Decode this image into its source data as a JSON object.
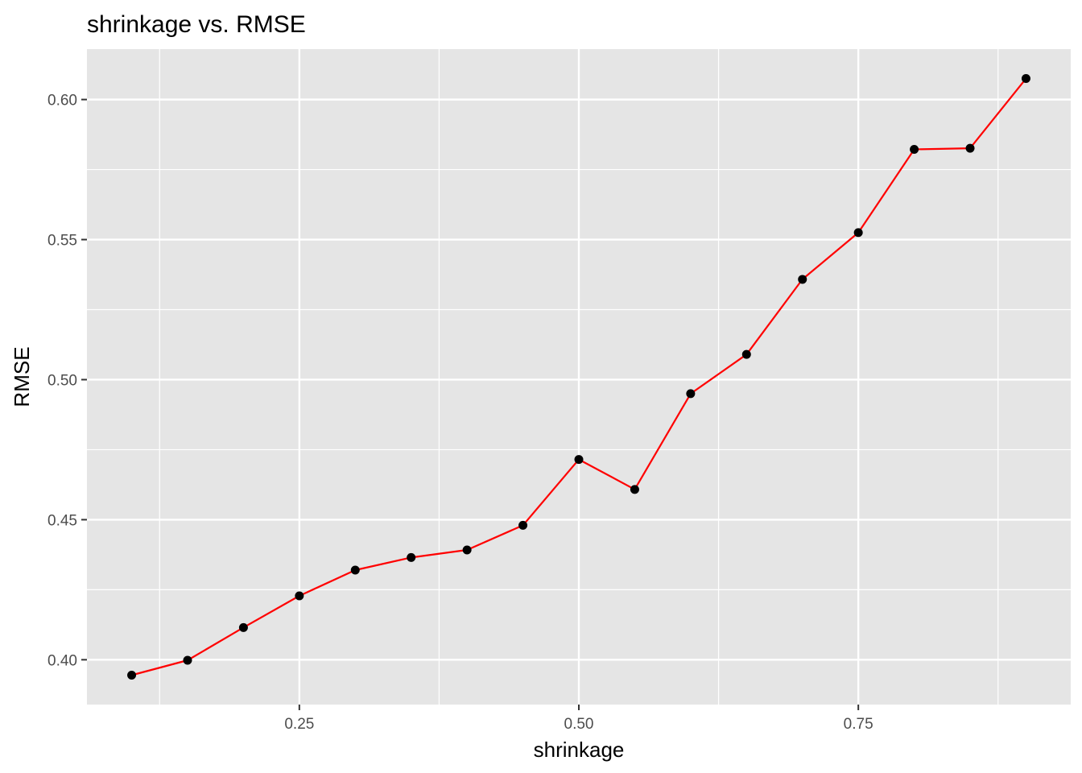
{
  "chart_data": {
    "type": "line",
    "title": "shrinkage vs. RMSE",
    "xlabel": "shrinkage",
    "ylabel": "RMSE",
    "xlim": [
      0.06,
      0.94
    ],
    "ylim": [
      0.384,
      0.618
    ],
    "x_ticks": [
      0.25,
      0.5,
      0.75
    ],
    "x_tick_labels": [
      "0.25",
      "0.50",
      "0.75"
    ],
    "x_minor_ticks": [
      0.125,
      0.375,
      0.625,
      0.875
    ],
    "y_ticks": [
      0.4,
      0.45,
      0.5,
      0.55,
      0.6
    ],
    "y_tick_labels": [
      "0.40",
      "0.45",
      "0.50",
      "0.55",
      "0.60"
    ],
    "y_minor_ticks": [
      0.425,
      0.475,
      0.525,
      0.575
    ],
    "grid": true,
    "series": [
      {
        "line_color": "#ff0000",
        "point_color": "#000000",
        "x": [
          0.1,
          0.15,
          0.2,
          0.25,
          0.3,
          0.35,
          0.4,
          0.45,
          0.5,
          0.55,
          0.6,
          0.65,
          0.7,
          0.75,
          0.8,
          0.85,
          0.9
        ],
        "y": [
          0.3945,
          0.3998,
          0.4115,
          0.4228,
          0.432,
          0.4365,
          0.4392,
          0.448,
          0.4715,
          0.4608,
          0.495,
          0.509,
          0.5358,
          0.5525,
          0.5822,
          0.5826,
          0.6075
        ]
      }
    ],
    "colors": {
      "panel_background": "#e5e5e5",
      "grid": "#ffffff",
      "tick_text": "#4d4d4d"
    }
  }
}
